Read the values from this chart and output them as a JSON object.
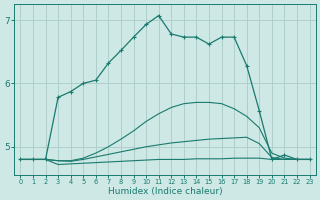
{
  "title": "",
  "xlabel": "Humidex (Indice chaleur)",
  "ylabel": "",
  "bg_color": "#cde8e5",
  "grid_color": "#aecfcc",
  "line_color": "#1a7a6e",
  "xlim": [
    -0.5,
    23.5
  ],
  "ylim": [
    4.55,
    7.25
  ],
  "yticks": [
    5,
    6,
    7
  ],
  "xticks": [
    0,
    1,
    2,
    3,
    4,
    5,
    6,
    7,
    8,
    9,
    10,
    11,
    12,
    13,
    14,
    15,
    16,
    17,
    18,
    19,
    20,
    21,
    22,
    23
  ],
  "curves": [
    {
      "x": [
        0,
        1,
        2,
        3,
        4,
        5,
        6,
        7,
        8,
        9,
        10,
        11,
        12,
        13,
        14,
        15,
        16,
        17,
        18,
        19,
        20,
        21,
        22,
        23
      ],
      "y": [
        4.8,
        4.8,
        4.8,
        4.72,
        4.73,
        4.74,
        4.75,
        4.76,
        4.77,
        4.78,
        4.79,
        4.8,
        4.8,
        4.8,
        4.81,
        4.81,
        4.81,
        4.82,
        4.82,
        4.82,
        4.8,
        4.8,
        4.8,
        4.8
      ],
      "marker": null,
      "lw": 0.8,
      "ls": "-"
    },
    {
      "x": [
        0,
        1,
        2,
        3,
        4,
        5,
        6,
        7,
        8,
        9,
        10,
        11,
        12,
        13,
        14,
        15,
        16,
        17,
        18,
        19,
        20,
        21,
        22,
        23
      ],
      "y": [
        4.8,
        4.8,
        4.8,
        4.78,
        4.77,
        4.8,
        4.84,
        4.88,
        4.92,
        4.96,
        5.0,
        5.03,
        5.06,
        5.08,
        5.1,
        5.12,
        5.13,
        5.14,
        5.15,
        5.05,
        4.83,
        4.8,
        4.8,
        4.8
      ],
      "marker": null,
      "lw": 0.8,
      "ls": "-"
    },
    {
      "x": [
        0,
        1,
        2,
        3,
        4,
        5,
        6,
        7,
        8,
        9,
        10,
        11,
        12,
        13,
        14,
        15,
        16,
        17,
        18,
        19,
        20,
        21,
        22,
        23
      ],
      "y": [
        4.8,
        4.8,
        4.8,
        4.78,
        4.78,
        4.82,
        4.9,
        5.0,
        5.12,
        5.25,
        5.4,
        5.52,
        5.62,
        5.68,
        5.7,
        5.7,
        5.68,
        5.6,
        5.48,
        5.3,
        4.9,
        4.82,
        4.8,
        4.8
      ],
      "marker": null,
      "lw": 0.8,
      "ls": "-"
    },
    {
      "x": [
        0,
        1,
        2,
        3,
        4,
        5,
        6,
        7,
        8,
        9,
        10,
        11,
        12,
        13,
        14,
        15,
        16,
        17,
        18,
        19,
        20,
        21,
        22,
        23
      ],
      "y": [
        4.8,
        4.8,
        4.8,
        5.78,
        5.87,
        6.0,
        6.05,
        6.32,
        6.52,
        6.73,
        6.93,
        7.07,
        6.78,
        6.73,
        6.73,
        6.62,
        6.73,
        6.73,
        6.28,
        5.57,
        4.8,
        4.87,
        4.8,
        4.8
      ],
      "marker": "+",
      "lw": 0.9,
      "ls": "-"
    }
  ]
}
